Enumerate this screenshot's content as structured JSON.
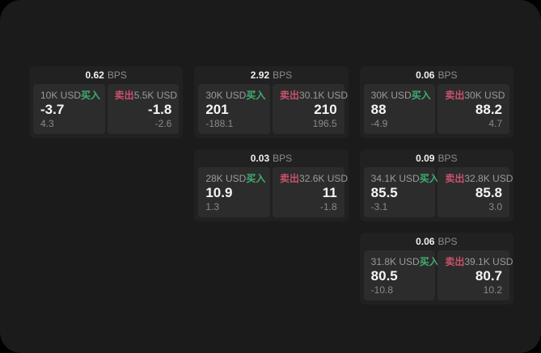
{
  "labels": {
    "bps_unit": "BPS",
    "buy": "买入",
    "sell": "卖出"
  },
  "colors": {
    "background": "#000000",
    "surface": "#1b1b1b",
    "card": "#212121",
    "panel": "#2c2c2c",
    "buy_green": "#3fae6f",
    "sell_red": "#c9526e"
  },
  "cards": [
    {
      "bps": "0.62",
      "buy": {
        "size": "10K USD",
        "price": "-3.7",
        "change": "4.3"
      },
      "sell": {
        "size": "5.5K USD",
        "price": "-1.8",
        "change": "-2.6"
      }
    },
    {
      "bps": "2.92",
      "buy": {
        "size": "30K USD",
        "price": "201",
        "change": "-188.1"
      },
      "sell": {
        "size": "30.1K USD",
        "price": "210",
        "change": "196.5"
      }
    },
    {
      "bps": "0.06",
      "buy": {
        "size": "30K USD",
        "price": "88",
        "change": "-4.9"
      },
      "sell": {
        "size": "30K USD",
        "price": "88.2",
        "change": "4.7"
      }
    },
    {
      "bps": "0.03",
      "buy": {
        "size": "28K USD",
        "price": "10.9",
        "change": "1.3"
      },
      "sell": {
        "size": "32.6K USD",
        "price": "11",
        "change": "-1.8"
      }
    },
    {
      "bps": "0.09",
      "buy": {
        "size": "34.1K USD",
        "price": "85.5",
        "change": "-3.1"
      },
      "sell": {
        "size": "32.8K USD",
        "price": "85.8",
        "change": "3.0"
      }
    },
    {
      "bps": "0.06",
      "buy": {
        "size": "31.8K USD",
        "price": "80.5",
        "change": "-10.8"
      },
      "sell": {
        "size": "39.1K USD",
        "price": "80.7",
        "change": "10.2"
      }
    }
  ]
}
